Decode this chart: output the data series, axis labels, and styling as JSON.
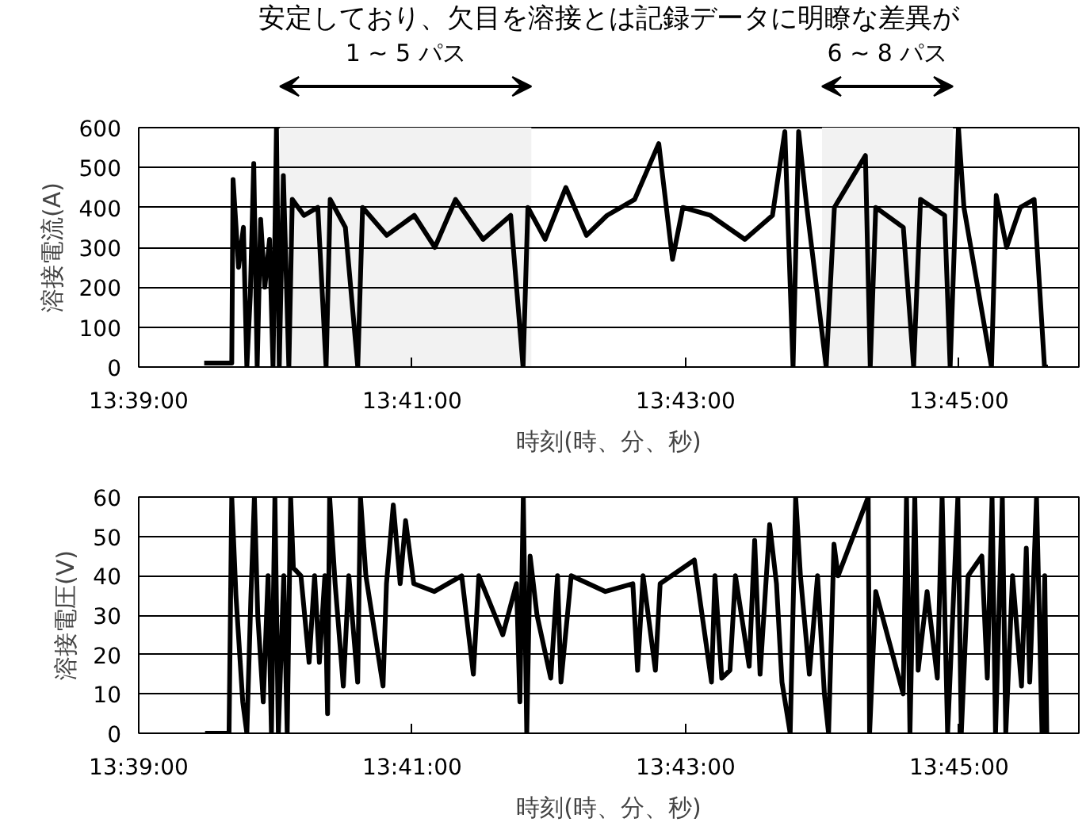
{
  "chart_data": [
    {
      "type": "line",
      "ylabel": "溶接電流(A)",
      "xlabel": "時刻(時、分、秒)",
      "grid": "y",
      "annotations": [
        "安定しており、欠目を溶接とは記録データに明瞭な差異が"
      ],
      "bands": [
        {
          "axis": "x",
          "from": 13.66721,
          "to": 13.69786,
          "label": "1 ~ 5 パス",
          "color": "#f2f2f2"
        },
        {
          "axis": "x",
          "from": 13.73329,
          "to": 13.74924,
          "label": "6 ~ 8 パス",
          "color": "#f2f2f2"
        }
      ],
      "xlim": [
        13.65,
        13.7646
      ],
      "xticks": [
        {
          "value": 13.65,
          "label": "13:39:00"
        },
        {
          "value": 13.683333,
          "label": "13:41:00"
        },
        {
          "value": 13.716667,
          "label": "13:43:00"
        },
        {
          "value": 13.75,
          "label": "13:45:00"
        }
      ],
      "ylim": [
        0,
        600
      ],
      "yticks": [
        0,
        100,
        200,
        300,
        400,
        500,
        600
      ],
      "series": [
        {
          "color": "#000000",
          "x": [
            13.65798,
            13.66134,
            13.6615,
            13.66217,
            13.66276,
            13.66318,
            13.6636,
            13.66402,
            13.66444,
            13.66486,
            13.66537,
            13.66595,
            13.66637,
            13.66679,
            13.66713,
            13.66763,
            13.6683,
            13.66872,
            13.67015,
            13.67183,
            13.67284,
            13.67334,
            13.67519,
            13.6767,
            13.67729,
            13.68023,
            13.68359,
            13.6861,
            13.68862,
            13.69198,
            13.69534,
            13.69685,
            13.69744,
            13.69954,
            13.70206,
            13.70458,
            13.70709,
            13.71045,
            13.71339,
            13.71507,
            13.71633,
            13.71969,
            13.72389,
            13.72725,
            13.72876,
            13.72976,
            13.73044,
            13.73144,
            13.7338,
            13.7348,
            13.73858,
            13.73917,
            13.73984,
            13.7432,
            13.74446,
            13.7453,
            13.74824,
            13.74891,
            13.74992,
            13.75059,
            13.75395,
            13.75453,
            13.75579,
            13.75747,
            13.75915,
            13.76041,
            13.76083
          ],
          "values": [
            10,
            10,
            470,
            250,
            350,
            0,
            180,
            510,
            0,
            370,
            200,
            320,
            0,
            600,
            0,
            480,
            0,
            420,
            380,
            400,
            0,
            420,
            350,
            0,
            400,
            330,
            380,
            300,
            420,
            320,
            380,
            0,
            400,
            320,
            450,
            330,
            380,
            420,
            560,
            270,
            400,
            380,
            320,
            380,
            590,
            0,
            590,
            400,
            0,
            400,
            530,
            0,
            400,
            350,
            0,
            420,
            380,
            0,
            600,
            400,
            0,
            430,
            300,
            400,
            420,
            0,
            0
          ]
        }
      ]
    },
    {
      "type": "line",
      "ylabel": "溶接電圧(V)",
      "xlabel": "時刻(時、分、秒)",
      "grid": "y",
      "xlim": [
        13.65,
        13.7646
      ],
      "xticks": [
        {
          "value": 13.65,
          "label": "13:39:00"
        },
        {
          "value": 13.683333,
          "label": "13:41:00"
        },
        {
          "value": 13.716667,
          "label": "13:43:00"
        },
        {
          "value": 13.75,
          "label": "13:45:00"
        }
      ],
      "ylim": [
        0,
        60
      ],
      "yticks": [
        0,
        10,
        20,
        30,
        40,
        50,
        60
      ],
      "series": [
        {
          "color": "#000000",
          "x": [
            13.65809,
            13.66101,
            13.66134,
            13.66185,
            13.66268,
            13.66318,
            13.66368,
            13.6641,
            13.66451,
            13.66518,
            13.66577,
            13.66618,
            13.6666,
            13.66702,
            13.66768,
            13.6681,
            13.66852,
            13.66885,
            13.66977,
            13.67077,
            13.67144,
            13.67202,
            13.67269,
            13.67302,
            13.67327,
            13.67394,
            13.67494,
            13.67561,
            13.67669,
            13.67703,
            13.67769,
            13.67978,
            13.6802,
            13.68103,
            13.68187,
            13.68253,
            13.68353,
            13.68604,
            13.68937,
            13.69079,
            13.69146,
            13.69438,
            13.69605,
            13.69646,
            13.69688,
            13.6973,
            13.69771,
            13.69855,
            13.70022,
            13.70105,
            13.70147,
            13.70272,
            13.70689,
            13.71023,
            13.71081,
            13.71148,
            13.71298,
            13.71356,
            13.71773,
            13.71982,
            13.72024,
            13.72107,
            13.72207,
            13.72274,
            13.72441,
            13.72508,
            13.72574,
            13.72691,
            13.72774,
            13.72841,
            13.72941,
            13.73008,
            13.73066,
            13.73175,
            13.73275,
            13.73358,
            13.73409,
            13.73475,
            13.73525,
            13.73892,
            13.73909,
            13.73984,
            13.74318,
            13.74359,
            13.74401,
            13.7446,
            13.74501,
            13.7461,
            13.74735,
            13.74793,
            13.7486,
            13.74985,
            13.75027,
            13.7511,
            13.75277,
            13.75344,
            13.75402,
            13.75444,
            13.75527,
            13.75569,
            13.75652,
            13.75761,
            13.75819,
            13.75861,
            13.75944,
            13.76011,
            13.76044,
            13.76069
          ],
          "values": [
            0,
            0,
            60,
            35,
            8,
            0,
            35,
            60,
            30,
            8,
            40,
            0,
            60,
            0,
            40,
            0,
            60,
            42,
            40,
            18,
            40,
            18,
            40,
            5,
            60,
            38,
            12,
            40,
            13,
            60,
            40,
            12,
            38,
            58,
            38,
            54,
            38,
            36,
            40,
            15,
            40,
            25,
            38,
            8,
            60,
            0,
            45,
            30,
            14,
            40,
            13,
            40,
            36,
            38,
            16,
            40,
            16,
            38,
            44,
            13,
            40,
            14,
            16,
            40,
            17,
            49,
            15,
            53,
            38,
            13,
            0,
            60,
            40,
            15,
            40,
            10,
            0,
            48,
            40,
            60,
            0,
            36,
            10,
            60,
            0,
            60,
            16,
            36,
            14,
            60,
            0,
            60,
            0,
            40,
            45,
            14,
            60,
            0,
            60,
            0,
            40,
            12,
            47,
            13,
            60,
            0,
            40,
            0
          ]
        }
      ]
    }
  ]
}
